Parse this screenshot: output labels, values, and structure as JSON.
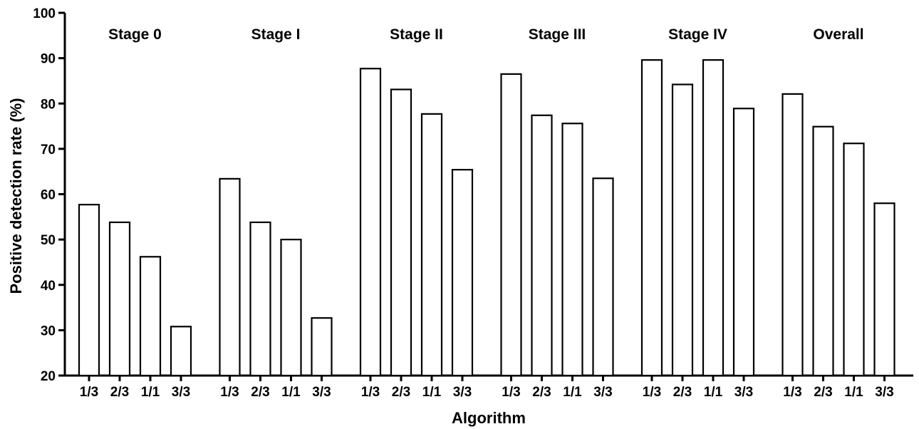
{
  "chart_data": {
    "type": "bar",
    "xlabel": "Algorithm",
    "ylabel": "Positive detection rate (%)",
    "ylim": [
      20,
      100
    ],
    "yticks": [
      20,
      30,
      40,
      50,
      60,
      70,
      80,
      90,
      100
    ],
    "categories": [
      "1/3",
      "2/3",
      "1/1",
      "3/3"
    ],
    "grid": false,
    "legend": "none",
    "bar_fill": "#ffffff",
    "bar_stroke": "#000000",
    "groups": [
      {
        "name": "Stage 0",
        "values": [
          57.7,
          53.8,
          46.2,
          30.8
        ]
      },
      {
        "name": "Stage I",
        "values": [
          63.4,
          53.8,
          50.0,
          32.7
        ]
      },
      {
        "name": "Stage II",
        "values": [
          87.7,
          83.1,
          77.7,
          65.4
        ]
      },
      {
        "name": "Stage III",
        "values": [
          86.5,
          77.4,
          75.6,
          63.5
        ]
      },
      {
        "name": "Stage IV",
        "values": [
          89.6,
          84.2,
          89.6,
          78.9
        ]
      },
      {
        "name": "Overall",
        "values": [
          82.1,
          74.9,
          71.2,
          58.0
        ]
      }
    ]
  }
}
